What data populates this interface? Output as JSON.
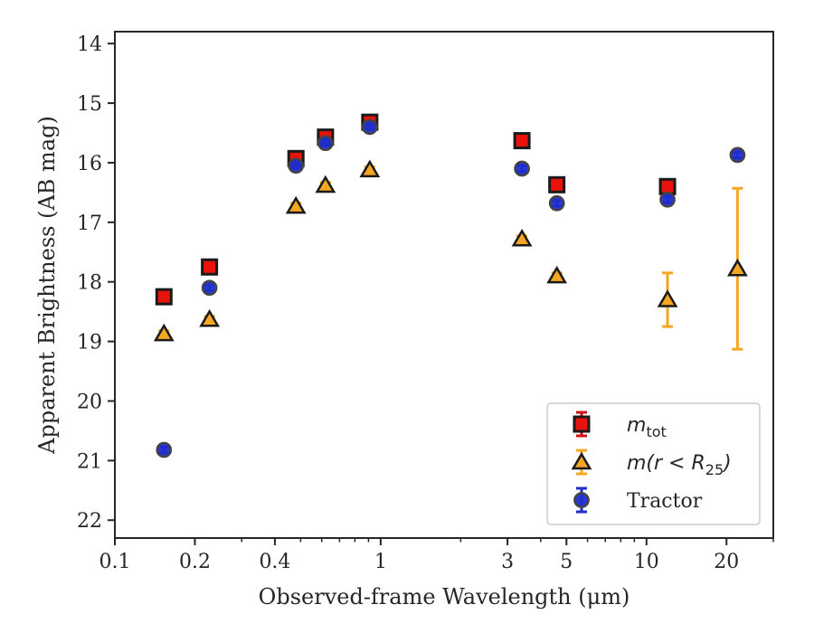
{
  "chart_data": {
    "type": "scatter",
    "xlabel": "Observed-frame Wavelength (μm)",
    "ylabel": "Apparent Brightness (AB mag)",
    "xscale": "log",
    "xlim": [
      0.1,
      30
    ],
    "ylim": [
      22.3,
      13.8
    ],
    "y_inverted": true,
    "xticks": [
      {
        "value": 0.1,
        "label": "0.1"
      },
      {
        "value": 0.2,
        "label": "0.2"
      },
      {
        "value": 0.4,
        "label": "0.4"
      },
      {
        "value": 1,
        "label": "1"
      },
      {
        "value": 3,
        "label": "3"
      },
      {
        "value": 5,
        "label": "5"
      },
      {
        "value": 10,
        "label": "10"
      },
      {
        "value": 20,
        "label": "20"
      }
    ],
    "yticks": [
      {
        "value": 14,
        "label": "14"
      },
      {
        "value": 15,
        "label": "15"
      },
      {
        "value": 16,
        "label": "16"
      },
      {
        "value": 17,
        "label": "17"
      },
      {
        "value": 18,
        "label": "18"
      },
      {
        "value": 19,
        "label": "19"
      },
      {
        "value": 20,
        "label": "20"
      },
      {
        "value": 21,
        "label": "21"
      },
      {
        "value": 22,
        "label": "22"
      }
    ],
    "grid": false,
    "legend_position": "lower-right",
    "series": [
      {
        "name": "m_tot",
        "legend_label": {
          "base": "m",
          "sub": "tot"
        },
        "marker": "square",
        "face_color": "#e8140c",
        "edge_color": "#1a1a1a",
        "errorbar_color": "#d11414",
        "points": [
          {
            "x": 0.153,
            "y": 18.25,
            "err": 0.05
          },
          {
            "x": 0.227,
            "y": 17.75,
            "err": 0.05
          },
          {
            "x": 0.48,
            "y": 15.93,
            "err": 0.05
          },
          {
            "x": 0.62,
            "y": 15.57,
            "err": 0.05
          },
          {
            "x": 0.91,
            "y": 15.32,
            "err": 0.05
          },
          {
            "x": 3.4,
            "y": 15.63,
            "err": 0.05
          },
          {
            "x": 4.6,
            "y": 16.37,
            "err": 0.05
          },
          {
            "x": 12.0,
            "y": 16.4,
            "err": 0.05
          }
        ]
      },
      {
        "name": "m(r<R25)",
        "legend_label": {
          "base": "m(r < R",
          "sub": "25",
          "tail": ")"
        },
        "marker": "triangle",
        "face_color": "#f5a623",
        "edge_color": "#1a1a1a",
        "errorbar_color": "#f5a623",
        "points": [
          {
            "x": 0.153,
            "y": 18.87,
            "err": 0.05
          },
          {
            "x": 0.227,
            "y": 18.63,
            "err": 0.05
          },
          {
            "x": 0.48,
            "y": 16.73,
            "err": 0.05
          },
          {
            "x": 0.62,
            "y": 16.38,
            "err": 0.05
          },
          {
            "x": 0.91,
            "y": 16.12,
            "err": 0.05
          },
          {
            "x": 3.4,
            "y": 17.28,
            "err": 0.05
          },
          {
            "x": 4.6,
            "y": 17.9,
            "err": 0.05
          },
          {
            "x": 12.0,
            "y": 18.3,
            "err": 0.45
          },
          {
            "x": 22.0,
            "y": 17.78,
            "err": 1.35
          }
        ]
      },
      {
        "name": "Tractor",
        "legend_label": {
          "base": "Tractor"
        },
        "marker": "circle",
        "face_color": "#1f2ecc",
        "edge_color": "#444444",
        "errorbar_color": "#1f2ecc",
        "points": [
          {
            "x": 0.153,
            "y": 20.82,
            "err": 0.05
          },
          {
            "x": 0.227,
            "y": 18.1,
            "err": 0.05
          },
          {
            "x": 0.48,
            "y": 16.05,
            "err": 0.05
          },
          {
            "x": 0.62,
            "y": 15.67,
            "err": 0.05
          },
          {
            "x": 0.91,
            "y": 15.4,
            "err": 0.05
          },
          {
            "x": 3.4,
            "y": 16.1,
            "err": 0.05
          },
          {
            "x": 4.6,
            "y": 16.68,
            "err": 0.05
          },
          {
            "x": 12.0,
            "y": 16.62,
            "err": 0.05
          },
          {
            "x": 22.0,
            "y": 15.87,
            "err": 0.05
          }
        ]
      }
    ]
  }
}
